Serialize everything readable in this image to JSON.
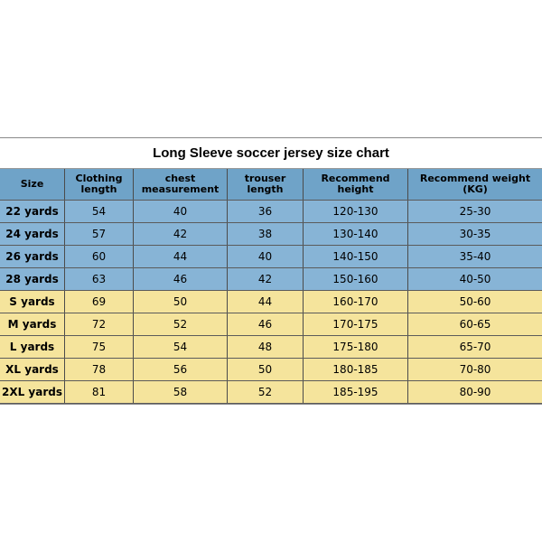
{
  "title": "Long Sleeve soccer jersey size chart",
  "columns": [
    "Size",
    "Clothing length",
    "chest measurement",
    "trouser length",
    "Recommend height",
    "Recommend weight (KG)"
  ],
  "colors": {
    "group_youth": "#87b4d6",
    "group_youth_header": "#6fa3c8",
    "group_adult": "#f5e49c",
    "border": "#4b4b4b",
    "background": "#ffffff"
  },
  "rows": [
    {
      "group": "youth",
      "size": "22 yards",
      "clothing_length": "54",
      "chest": "40",
      "trouser": "36",
      "height": "120-130",
      "weight": "25-30"
    },
    {
      "group": "youth",
      "size": "24 yards",
      "clothing_length": "57",
      "chest": "42",
      "trouser": "38",
      "height": "130-140",
      "weight": "30-35"
    },
    {
      "group": "youth",
      "size": "26 yards",
      "clothing_length": "60",
      "chest": "44",
      "trouser": "40",
      "height": "140-150",
      "weight": "35-40"
    },
    {
      "group": "youth",
      "size": "28 yards",
      "clothing_length": "63",
      "chest": "46",
      "trouser": "42",
      "height": "150-160",
      "weight": "40-50"
    },
    {
      "group": "adult",
      "size": "S yards",
      "clothing_length": "69",
      "chest": "50",
      "trouser": "44",
      "height": "160-170",
      "weight": "50-60"
    },
    {
      "group": "adult",
      "size": "M yards",
      "clothing_length": "72",
      "chest": "52",
      "trouser": "46",
      "height": "170-175",
      "weight": "60-65"
    },
    {
      "group": "adult",
      "size": "L yards",
      "clothing_length": "75",
      "chest": "54",
      "trouser": "48",
      "height": "175-180",
      "weight": "65-70"
    },
    {
      "group": "adult",
      "size": "XL yards",
      "clothing_length": "78",
      "chest": "56",
      "trouser": "50",
      "height": "180-185",
      "weight": "70-80"
    },
    {
      "group": "adult",
      "size": "2XL yards",
      "clothing_length": "81",
      "chest": "58",
      "trouser": "52",
      "height": "185-195",
      "weight": "80-90"
    }
  ]
}
